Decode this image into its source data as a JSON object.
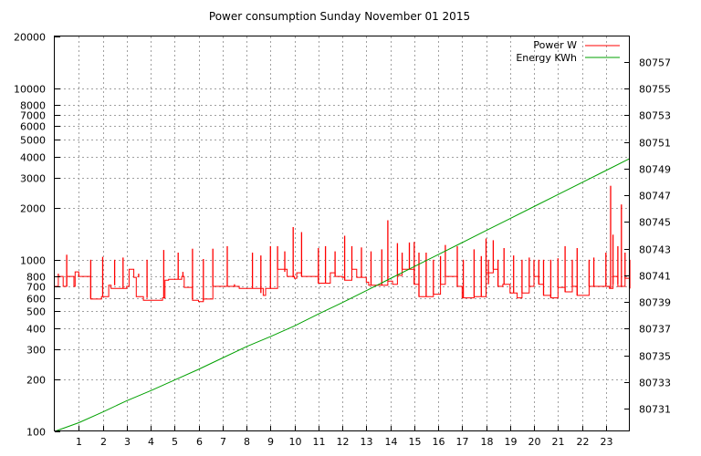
{
  "chart_data": {
    "type": "line",
    "title": "Power consumption Sunday November 01 2015",
    "x": {
      "range": [
        0,
        24
      ],
      "ticks": [
        1,
        2,
        3,
        4,
        5,
        6,
        7,
        8,
        9,
        10,
        11,
        12,
        13,
        14,
        15,
        16,
        17,
        18,
        19,
        20,
        21,
        22,
        23
      ],
      "tick_labels": [
        "1",
        "2",
        "3",
        "4",
        "5",
        "6",
        "7",
        "8",
        "9",
        "10",
        "11",
        "12",
        "13",
        "14",
        "15",
        "16",
        "17",
        "18",
        "19",
        "20",
        "21",
        "22",
        "23"
      ],
      "grid": true
    },
    "y_left": {
      "scale": "log",
      "range": [
        100,
        20000
      ],
      "ticks": [
        100,
        200,
        300,
        400,
        500,
        600,
        700,
        800,
        1000,
        2000,
        3000,
        4000,
        5000,
        6000,
        7000,
        8000,
        10000,
        20000
      ],
      "tick_labels": [
        "100",
        "200",
        "300",
        "400",
        "500",
        "600",
        "700",
        "800",
        "1000",
        "2000",
        "3000",
        "4000",
        "5000",
        "6000",
        "7000",
        "8000",
        "10000",
        "20000"
      ],
      "grid_at": [
        100,
        200,
        300,
        400,
        500,
        600,
        700,
        800,
        1000,
        2000,
        3000,
        4000,
        5000,
        6000,
        7000,
        8000,
        10000,
        20000
      ]
    },
    "y_right": {
      "scale": "linear",
      "range": [
        80729.3,
        80758.9
      ],
      "ticks": [
        80731,
        80733,
        80735,
        80737,
        80739,
        80741,
        80743,
        80745,
        80747,
        80749,
        80751,
        80753,
        80755,
        80757
      ],
      "tick_labels": [
        "80731",
        "80733",
        "80735",
        "80737",
        "80739",
        "80741",
        "80743",
        "80745",
        "80747",
        "80749",
        "80751",
        "80753",
        "80755",
        "80757"
      ]
    },
    "legend": {
      "placement": "top-right"
    },
    "series": [
      {
        "name": "Power W",
        "axis": "left",
        "color": "#ff0000",
        "baseline": [
          [
            0.0,
            700
          ],
          [
            0.15,
            800
          ],
          [
            0.35,
            700
          ],
          [
            0.5,
            800
          ],
          [
            0.8,
            700
          ],
          [
            0.85,
            850
          ],
          [
            1.0,
            800
          ],
          [
            1.5,
            590
          ],
          [
            1.95,
            610
          ],
          [
            2.25,
            710
          ],
          [
            2.35,
            680
          ],
          [
            3.0,
            700
          ],
          [
            3.1,
            880
          ],
          [
            3.3,
            790
          ],
          [
            3.4,
            610
          ],
          [
            3.7,
            580
          ],
          [
            4.5,
            600
          ],
          [
            4.6,
            760
          ],
          [
            4.75,
            770
          ],
          [
            5.3,
            800
          ],
          [
            5.4,
            690
          ],
          [
            5.75,
            580
          ],
          [
            6.0,
            570
          ],
          [
            6.2,
            590
          ],
          [
            6.6,
            700
          ],
          [
            7.2,
            700
          ],
          [
            7.7,
            680
          ],
          [
            8.5,
            680
          ],
          [
            8.7,
            620
          ],
          [
            8.8,
            680
          ],
          [
            9.2,
            680
          ],
          [
            9.3,
            880
          ],
          [
            9.4,
            880
          ],
          [
            9.7,
            800
          ],
          [
            10.0,
            780
          ],
          [
            10.1,
            840
          ],
          [
            10.3,
            800
          ],
          [
            10.9,
            800
          ],
          [
            11.0,
            730
          ],
          [
            11.1,
            730
          ],
          [
            11.3,
            730
          ],
          [
            11.5,
            840
          ],
          [
            11.7,
            800
          ],
          [
            12.0,
            790
          ],
          [
            12.1,
            760
          ],
          [
            12.4,
            880
          ],
          [
            12.6,
            790
          ],
          [
            12.8,
            790
          ],
          [
            13.0,
            740
          ],
          [
            13.1,
            710
          ],
          [
            13.6,
            710
          ],
          [
            13.9,
            750
          ],
          [
            14.1,
            720
          ],
          [
            14.3,
            810
          ],
          [
            14.5,
            880
          ],
          [
            14.7,
            880
          ],
          [
            15.0,
            720
          ],
          [
            15.2,
            610
          ],
          [
            15.8,
            630
          ],
          [
            16.1,
            720
          ],
          [
            16.3,
            800
          ],
          [
            16.8,
            700
          ],
          [
            17.0,
            600
          ],
          [
            17.5,
            610
          ],
          [
            17.8,
            610
          ],
          [
            18.0,
            840
          ],
          [
            18.3,
            880
          ],
          [
            18.5,
            700
          ],
          [
            18.7,
            720
          ],
          [
            19.0,
            640
          ],
          [
            19.3,
            600
          ],
          [
            19.5,
            640
          ],
          [
            19.8,
            700
          ],
          [
            20.0,
            800
          ],
          [
            20.2,
            720
          ],
          [
            20.4,
            620
          ],
          [
            20.7,
            600
          ],
          [
            21.0,
            690
          ],
          [
            21.3,
            650
          ],
          [
            21.6,
            700
          ],
          [
            21.8,
            620
          ],
          [
            22.0,
            620
          ],
          [
            22.3,
            700
          ],
          [
            22.5,
            700
          ],
          [
            23.0,
            700
          ],
          [
            23.15,
            680
          ],
          [
            23.3,
            800
          ],
          [
            23.5,
            700
          ],
          [
            23.8,
            780
          ],
          [
            24.0,
            680
          ]
        ],
        "spikes": [
          [
            0.15,
            800,
            830
          ],
          [
            0.5,
            700,
            1070
          ],
          [
            1.0,
            800,
            820
          ],
          [
            1.5,
            590,
            1000
          ],
          [
            2.0,
            610,
            1040
          ],
          [
            2.5,
            710,
            1000
          ],
          [
            2.85,
            680,
            1030
          ],
          [
            3.5,
            790,
            830
          ],
          [
            3.85,
            600,
            1000
          ],
          [
            4.55,
            600,
            1140
          ],
          [
            5.15,
            770,
            1100
          ],
          [
            5.35,
            800,
            850
          ],
          [
            5.75,
            590,
            1160
          ],
          [
            6.2,
            580,
            1010
          ],
          [
            6.6,
            700,
            1160
          ],
          [
            7.2,
            700,
            1200
          ],
          [
            7.5,
            700,
            720
          ],
          [
            8.25,
            680,
            1100
          ],
          [
            8.6,
            640,
            1060
          ],
          [
            9.0,
            680,
            1200
          ],
          [
            9.3,
            880,
            1200
          ],
          [
            9.6,
            850,
            1120
          ],
          [
            9.95,
            790,
            1550
          ],
          [
            10.3,
            800,
            1450
          ],
          [
            11.0,
            730,
            1170
          ],
          [
            11.3,
            730,
            1200
          ],
          [
            11.7,
            800,
            1120
          ],
          [
            12.1,
            760,
            1380
          ],
          [
            12.4,
            880,
            1200
          ],
          [
            12.8,
            790,
            1180
          ],
          [
            13.2,
            710,
            1120
          ],
          [
            13.65,
            710,
            1150
          ],
          [
            13.9,
            750,
            1700
          ],
          [
            14.3,
            810,
            1250
          ],
          [
            14.5,
            880,
            1100
          ],
          [
            14.8,
            880,
            1260
          ],
          [
            15.0,
            720,
            1270
          ],
          [
            15.2,
            610,
            1100
          ],
          [
            15.5,
            610,
            1100
          ],
          [
            15.8,
            630,
            1000
          ],
          [
            16.1,
            720,
            1050
          ],
          [
            16.3,
            800,
            1220
          ],
          [
            16.8,
            700,
            1200
          ],
          [
            17.05,
            600,
            1000
          ],
          [
            17.5,
            610,
            1150
          ],
          [
            17.8,
            610,
            1050
          ],
          [
            18.0,
            840,
            1330
          ],
          [
            18.1,
            720,
            1000
          ],
          [
            18.3,
            880,
            1300
          ],
          [
            18.5,
            700,
            1000
          ],
          [
            18.75,
            720,
            1170
          ],
          [
            19.15,
            640,
            1060
          ],
          [
            19.5,
            640,
            1000
          ],
          [
            19.8,
            700,
            1030
          ],
          [
            20.0,
            800,
            1000
          ],
          [
            20.2,
            720,
            1000
          ],
          [
            20.4,
            620,
            1000
          ],
          [
            20.7,
            600,
            1000
          ],
          [
            21.0,
            690,
            1020
          ],
          [
            21.3,
            650,
            1200
          ],
          [
            21.6,
            700,
            1000
          ],
          [
            21.8,
            620,
            1170
          ],
          [
            22.3,
            700,
            1000
          ],
          [
            22.5,
            700,
            1030
          ],
          [
            23.0,
            700,
            1100
          ],
          [
            23.2,
            680,
            2700
          ],
          [
            23.3,
            720,
            1400
          ],
          [
            23.5,
            720,
            1200
          ],
          [
            23.65,
            700,
            2100
          ],
          [
            23.8,
            780,
            1100
          ],
          [
            24.0,
            680,
            1000
          ]
        ]
      },
      {
        "name": "Energy KWh",
        "axis": "right",
        "color": "#00a000",
        "points": [
          [
            0,
            80729.3
          ],
          [
            1,
            80729.95
          ],
          [
            2,
            80730.75
          ],
          [
            3,
            80731.6
          ],
          [
            4,
            80732.35
          ],
          [
            5,
            80733.15
          ],
          [
            6,
            80733.95
          ],
          [
            7,
            80734.8
          ],
          [
            8,
            80735.65
          ],
          [
            9,
            80736.4
          ],
          [
            10,
            80737.2
          ],
          [
            11,
            80738.1
          ],
          [
            12,
            80738.95
          ],
          [
            13,
            80739.85
          ],
          [
            14,
            80740.75
          ],
          [
            15,
            80741.65
          ],
          [
            16,
            80742.55
          ],
          [
            17,
            80743.45
          ],
          [
            18,
            80744.35
          ],
          [
            19,
            80745.25
          ],
          [
            20,
            80746.15
          ],
          [
            21,
            80747.05
          ],
          [
            22,
            80747.95
          ],
          [
            23,
            80748.85
          ],
          [
            24,
            80749.75
          ]
        ]
      }
    ]
  }
}
